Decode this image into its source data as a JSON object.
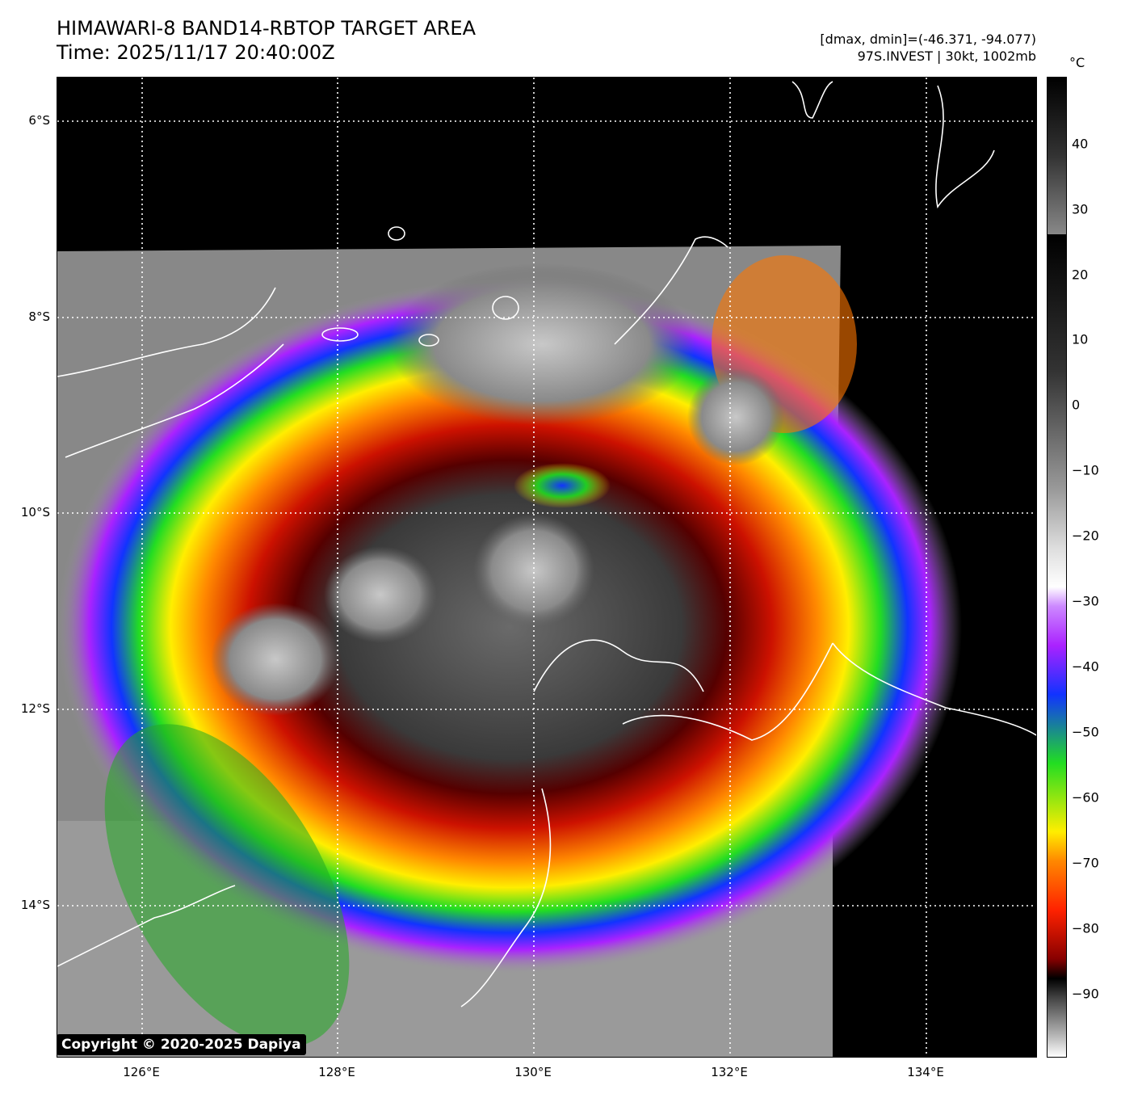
{
  "title": {
    "line1": "HIMAWARI-8 BAND14-RBTOP TARGET AREA",
    "line2": "Time: 2025/11/17 20:40:00Z"
  },
  "meta": {
    "dminmax": "[dmax, dmin]=(-46.371, -94.077)",
    "storm": "97S.INVEST | 30kt, 1002mb"
  },
  "map": {
    "lat_labels": [
      "6°S",
      "8°S",
      "10°S",
      "12°S",
      "14°S"
    ],
    "lon_labels": [
      "126°E",
      "128°E",
      "130°E",
      "132°E",
      "134°E"
    ],
    "background_color": "#000000",
    "coastline_color": "#ffffff",
    "gridlines": "dotted white"
  },
  "colorbar": {
    "unit": "°C",
    "ticks": [
      "40",
      "30",
      "20",
      "10",
      "0",
      "−10",
      "−20",
      "−30",
      "−40",
      "−50",
      "−60",
      "−70",
      "−80",
      "−90"
    ]
  },
  "copyright": "Copyright © 2020-2025 Dapiya"
}
